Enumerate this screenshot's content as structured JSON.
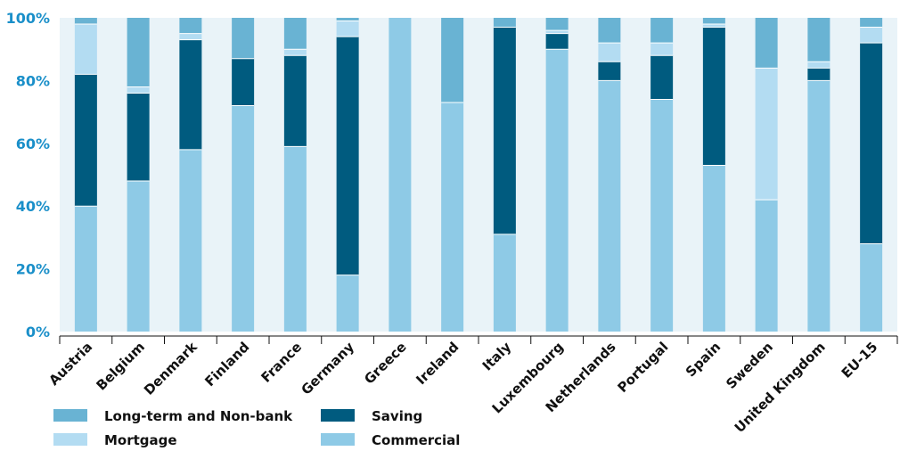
{
  "chart_data": {
    "type": "bar",
    "stacked": true,
    "percent": true,
    "categories": [
      "Austria",
      "Belgium",
      "Denmark",
      "Finland",
      "France",
      "Germany",
      "Greece",
      "Ireland",
      "Italy",
      "Luxembourg",
      "Netherlands",
      "Portugal",
      "Spain",
      "Sweden",
      "United Kingdom",
      "EU-15"
    ],
    "series": [
      {
        "name": "Commercial",
        "color": "#8ecae6",
        "values": [
          40,
          48,
          58,
          72,
          59,
          18,
          100,
          73,
          31,
          90,
          80,
          74,
          53,
          42,
          80,
          28
        ]
      },
      {
        "name": "Saving",
        "color": "#005b7f",
        "values": [
          42,
          28,
          35,
          15,
          29,
          76,
          0,
          0,
          66,
          5,
          6,
          14,
          44,
          0,
          4,
          64
        ]
      },
      {
        "name": "Mortgage",
        "color": "#b3dcf2",
        "values": [
          16,
          2,
          2,
          0,
          2,
          5,
          0,
          0,
          0,
          1,
          6,
          4,
          1,
          42,
          2,
          5
        ]
      },
      {
        "name": "Long-term and Non-bank",
        "color": "#69b3d3",
        "values": [
          2,
          22,
          5,
          13,
          10,
          1,
          0,
          27,
          3,
          4,
          8,
          8,
          2,
          16,
          14,
          3
        ]
      }
    ],
    "ylim": [
      0,
      100
    ],
    "yticks": [
      "0%",
      "20%",
      "40%",
      "60%",
      "80%",
      "100%"
    ],
    "legend": {
      "position": "bottom-left",
      "entries": [
        {
          "name": "Long-term and Non-bank",
          "color": "#69b3d3"
        },
        {
          "name": "Saving",
          "color": "#005b7f"
        },
        {
          "name": "Mortgage",
          "color": "#b3dcf2"
        },
        {
          "name": "Commercial",
          "color": "#8ecae6"
        }
      ]
    },
    "grid": false,
    "background": "#e9f3f8"
  }
}
